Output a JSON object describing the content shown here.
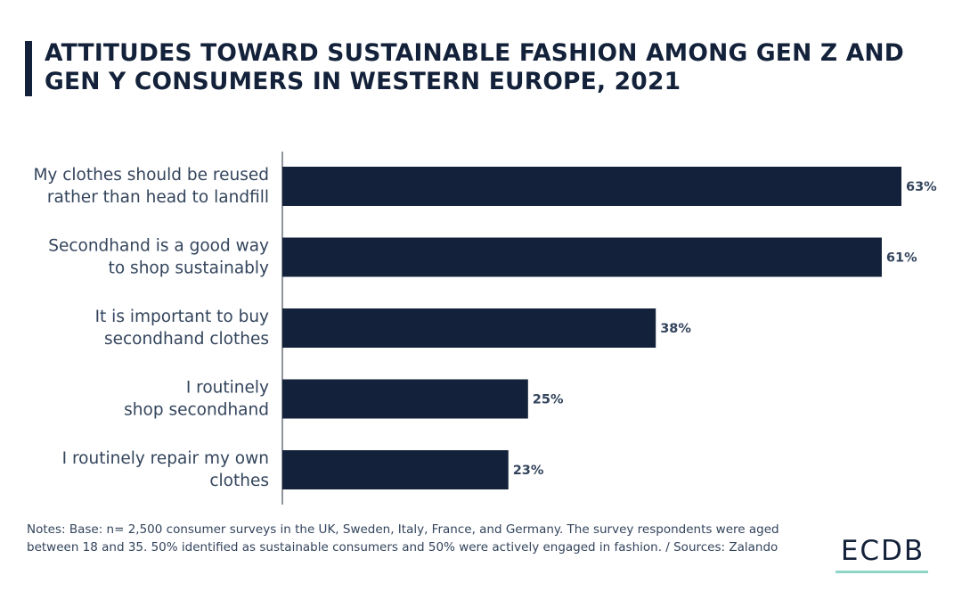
{
  "title": "ATTITUDES TOWARD SUSTAINABLE FASHION AMONG GEN Z AND GEN Y CONSUMERS IN WESTERN EUROPE, 2021",
  "notes": "Notes: Base: n= 2,500 consumer surveys in the UK, Sweden, Italy, France, and Germany. The survey respondents were aged between 18 and 35. 50% identified as sustainable consumers and 50% were actively engaged in fashion. / Sources: Zalando",
  "logo": "ECDB",
  "colors": {
    "bar": "#13223a",
    "accent": "#8fd6c9",
    "text": "#33445c"
  },
  "chart_data": {
    "type": "bar",
    "orientation": "horizontal",
    "title": "ATTITUDES TOWARD SUSTAINABLE FASHION AMONG GEN Z AND GEN Y CONSUMERS IN WESTERN EUROPE, 2021",
    "categories": [
      [
        "My clothes should be reused",
        "rather than head to landfill"
      ],
      [
        "Secondhand is a good way",
        "to shop sustainably"
      ],
      [
        "It is important to buy",
        "secondhand clothes"
      ],
      [
        "I routinely",
        "shop secondhand"
      ],
      [
        "I routinely repair my own",
        "clothes"
      ]
    ],
    "values": [
      63,
      61,
      38,
      25,
      23
    ],
    "value_labels": [
      "63%",
      "61%",
      "38%",
      "25%",
      "23%"
    ],
    "unit": "%",
    "xlim": [
      0,
      63
    ],
    "grid": false,
    "legend": "none"
  }
}
